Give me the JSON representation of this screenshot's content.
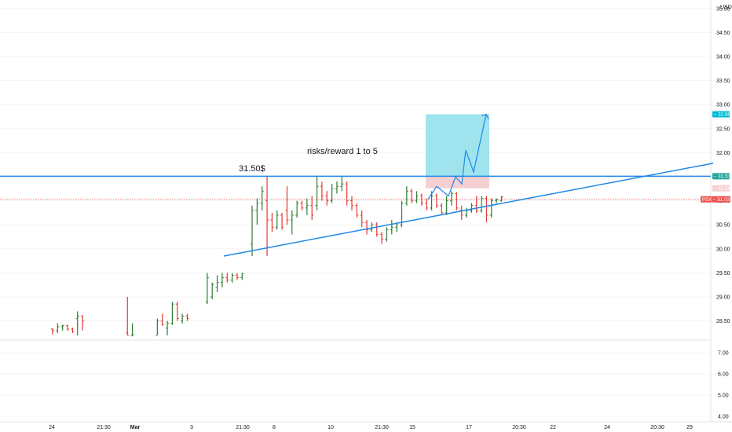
{
  "chart_data": {
    "type": "candlestick",
    "currency": "USD",
    "annotations": {
      "price_label": "31.50$",
      "rr_label": "risks/reward 1 to 5"
    },
    "price_axis": {
      "upper_ticks": [
        "35.00",
        "34.50",
        "34.00",
        "33.50",
        "33.00",
        "32.50",
        "32.00",
        "31.50",
        "31.00",
        "30.50",
        "30.00",
        "29.50",
        "29.00",
        "28.50"
      ],
      "lower_ticks": [
        "7.00",
        "6.00",
        "5.00",
        "4.00"
      ],
      "tags": [
        {
          "text": "32.80",
          "value": 32.8,
          "color": "#00bcd4"
        },
        {
          "text": "31.51",
          "value": 31.51,
          "color": "#26a69a"
        },
        {
          "text": "31.26",
          "value": 31.26,
          "color": "#f8cfcf",
          "text_color": "#131722"
        },
        {
          "text": "PSXP",
          "value": 31.03,
          "color": "#ef5350"
        },
        {
          "text": "31.03",
          "value": 31.03,
          "color": "#ef5350"
        }
      ]
    },
    "time_axis": [
      "24",
      "21:30",
      "Mar",
      "3",
      "21:30",
      "8",
      "10",
      "21:30",
      "15",
      "17",
      "20:30",
      "22",
      "24",
      "20:30",
      "29"
    ],
    "resistance_level": 31.51,
    "current_price": 31.03,
    "trade_box": {
      "entry": 31.51,
      "target": 32.8,
      "stop": 31.26
    },
    "colors": {
      "up": "#2e7d32",
      "down": "#e53935",
      "line": "#1e88e5",
      "profit": "#9fe3ef",
      "loss": "#f6cfd2",
      "grid": "#eeeeee"
    },
    "candles": [
      {
        "o": 28.33,
        "h": 28.35,
        "l": 28.22,
        "c": 28.3
      },
      {
        "o": 28.3,
        "h": 28.45,
        "l": 28.25,
        "c": 28.38
      },
      {
        "o": 28.38,
        "h": 28.42,
        "l": 28.3,
        "c": 28.4
      },
      {
        "o": 28.4,
        "h": 28.42,
        "l": 28.3,
        "c": 28.33
      },
      {
        "o": 28.33,
        "h": 28.36,
        "l": 28.25,
        "c": 28.28
      },
      {
        "o": 28.55,
        "h": 28.7,
        "l": 28.2,
        "c": 28.6
      },
      {
        "o": 28.6,
        "h": 28.62,
        "l": 28.3,
        "c": 28.5
      },
      {
        "o": 28.25,
        "h": 29.0,
        "l": 28.2,
        "c": 28.2
      },
      {
        "o": 28.2,
        "h": 28.45,
        "l": 28.18,
        "c": 28.22
      },
      {
        "o": 28.2,
        "h": 28.55,
        "l": 28.2,
        "c": 28.5
      },
      {
        "o": 28.5,
        "h": 28.65,
        "l": 28.4,
        "c": 28.42
      },
      {
        "o": 28.35,
        "h": 28.5,
        "l": 28.2,
        "c": 28.45
      },
      {
        "o": 28.45,
        "h": 28.9,
        "l": 28.42,
        "c": 28.85
      },
      {
        "o": 28.85,
        "h": 28.9,
        "l": 28.5,
        "c": 28.55
      },
      {
        "o": 28.5,
        "h": 28.65,
        "l": 28.45,
        "c": 28.6
      },
      {
        "o": 28.6,
        "h": 28.65,
        "l": 28.5,
        "c": 28.55
      },
      {
        "o": 28.9,
        "h": 29.5,
        "l": 28.85,
        "c": 29.4
      },
      {
        "o": 29.0,
        "h": 29.3,
        "l": 28.95,
        "c": 29.25
      },
      {
        "o": 29.2,
        "h": 29.45,
        "l": 29.1,
        "c": 29.3
      },
      {
        "o": 29.3,
        "h": 29.5,
        "l": 29.2,
        "c": 29.4
      },
      {
        "o": 29.4,
        "h": 29.5,
        "l": 29.3,
        "c": 29.35
      },
      {
        "o": 29.35,
        "h": 29.5,
        "l": 29.3,
        "c": 29.45
      },
      {
        "o": 29.45,
        "h": 29.5,
        "l": 29.35,
        "c": 29.4
      },
      {
        "o": 29.4,
        "h": 29.5,
        "l": 29.35,
        "c": 29.48
      },
      {
        "o": 30.1,
        "h": 30.9,
        "l": 29.85,
        "c": 30.8
      },
      {
        "o": 30.8,
        "h": 31.05,
        "l": 30.5,
        "c": 30.95
      },
      {
        "o": 30.95,
        "h": 31.3,
        "l": 30.8,
        "c": 31.2
      },
      {
        "o": 31.0,
        "h": 31.5,
        "l": 29.85,
        "c": 30.6
      },
      {
        "o": 30.6,
        "h": 30.75,
        "l": 30.35,
        "c": 30.45
      },
      {
        "o": 30.45,
        "h": 30.8,
        "l": 30.4,
        "c": 30.7
      },
      {
        "o": 30.7,
        "h": 30.75,
        "l": 30.4,
        "c": 30.45
      },
      {
        "o": 30.8,
        "h": 31.3,
        "l": 30.5,
        "c": 30.6
      },
      {
        "o": 30.6,
        "h": 30.8,
        "l": 30.3,
        "c": 30.7
      },
      {
        "o": 30.7,
        "h": 31.0,
        "l": 30.65,
        "c": 30.95
      },
      {
        "o": 30.95,
        "h": 31.0,
        "l": 30.8,
        "c": 30.85
      },
      {
        "o": 30.85,
        "h": 31.05,
        "l": 30.7,
        "c": 30.9
      },
      {
        "o": 30.9,
        "h": 31.1,
        "l": 30.6,
        "c": 30.7
      },
      {
        "o": 30.9,
        "h": 31.5,
        "l": 30.8,
        "c": 31.3
      },
      {
        "o": 31.3,
        "h": 31.4,
        "l": 31.0,
        "c": 31.1
      },
      {
        "o": 31.1,
        "h": 31.2,
        "l": 30.9,
        "c": 31.0
      },
      {
        "o": 31.0,
        "h": 31.35,
        "l": 30.95,
        "c": 31.25
      },
      {
        "o": 31.25,
        "h": 31.4,
        "l": 31.15,
        "c": 31.3
      },
      {
        "o": 31.3,
        "h": 31.5,
        "l": 31.2,
        "c": 31.35
      },
      {
        "o": 31.35,
        "h": 31.4,
        "l": 30.9,
        "c": 31.0
      },
      {
        "o": 31.0,
        "h": 31.1,
        "l": 30.8,
        "c": 30.9
      },
      {
        "o": 30.9,
        "h": 30.95,
        "l": 30.65,
        "c": 30.7
      },
      {
        "o": 30.7,
        "h": 30.8,
        "l": 30.45,
        "c": 30.55
      },
      {
        "o": 30.55,
        "h": 30.6,
        "l": 30.3,
        "c": 30.4
      },
      {
        "o": 30.4,
        "h": 30.55,
        "l": 30.35,
        "c": 30.5
      },
      {
        "o": 30.5,
        "h": 30.55,
        "l": 30.25,
        "c": 30.3
      },
      {
        "o": 30.3,
        "h": 30.35,
        "l": 30.1,
        "c": 30.2
      },
      {
        "o": 30.2,
        "h": 30.45,
        "l": 30.15,
        "c": 30.4
      },
      {
        "o": 30.4,
        "h": 30.6,
        "l": 30.3,
        "c": 30.45
      },
      {
        "o": 30.45,
        "h": 30.55,
        "l": 30.35,
        "c": 30.5
      },
      {
        "o": 30.5,
        "h": 31.0,
        "l": 30.45,
        "c": 30.95
      },
      {
        "o": 30.95,
        "h": 31.3,
        "l": 30.9,
        "c": 31.2
      },
      {
        "o": 31.2,
        "h": 31.25,
        "l": 30.95,
        "c": 31.0
      },
      {
        "o": 31.0,
        "h": 31.2,
        "l": 30.95,
        "c": 31.1
      },
      {
        "o": 31.1,
        "h": 31.15,
        "l": 30.9,
        "c": 30.95
      },
      {
        "o": 30.95,
        "h": 31.05,
        "l": 30.8,
        "c": 30.85
      },
      {
        "o": 30.85,
        "h": 31.2,
        "l": 30.8,
        "c": 31.1
      },
      {
        "o": 31.1,
        "h": 31.15,
        "l": 30.85,
        "c": 30.9
      },
      {
        "o": 30.9,
        "h": 30.95,
        "l": 30.7,
        "c": 30.75
      },
      {
        "o": 30.75,
        "h": 31.1,
        "l": 30.7,
        "c": 31.0
      },
      {
        "o": 31.0,
        "h": 31.2,
        "l": 30.9,
        "c": 31.15
      },
      {
        "o": 31.15,
        "h": 31.18,
        "l": 30.8,
        "c": 30.85
      },
      {
        "o": 30.8,
        "h": 30.9,
        "l": 30.6,
        "c": 30.7
      },
      {
        "o": 30.7,
        "h": 30.85,
        "l": 30.65,
        "c": 30.8
      },
      {
        "o": 30.8,
        "h": 30.95,
        "l": 30.75,
        "c": 30.9
      },
      {
        "o": 30.9,
        "h": 31.1,
        "l": 30.75,
        "c": 30.8
      },
      {
        "o": 30.8,
        "h": 31.1,
        "l": 30.75,
        "c": 31.05
      },
      {
        "o": 31.05,
        "h": 31.1,
        "l": 30.55,
        "c": 30.7
      },
      {
        "o": 30.7,
        "h": 31.05,
        "l": 30.65,
        "c": 31.0
      },
      {
        "o": 31.0,
        "h": 31.05,
        "l": 30.95,
        "c": 31.02
      },
      {
        "o": 31.0,
        "h": 31.1,
        "l": 30.98,
        "c": 31.08
      }
    ],
    "projection": [
      {
        "i": 74,
        "p": 31.03
      },
      {
        "i": 76,
        "p": 31.3
      },
      {
        "i": 78,
        "p": 31.1
      },
      {
        "i": 80,
        "p": 31.5
      },
      {
        "i": 81,
        "p": 31.35
      },
      {
        "i": 82,
        "p": 32.05
      },
      {
        "i": 84,
        "p": 31.6
      },
      {
        "i": 86,
        "p": 32.8
      }
    ],
    "trendline": [
      {
        "i": 24,
        "p": 29.85
      },
      {
        "i": 128,
        "p": 31.78
      }
    ]
  }
}
